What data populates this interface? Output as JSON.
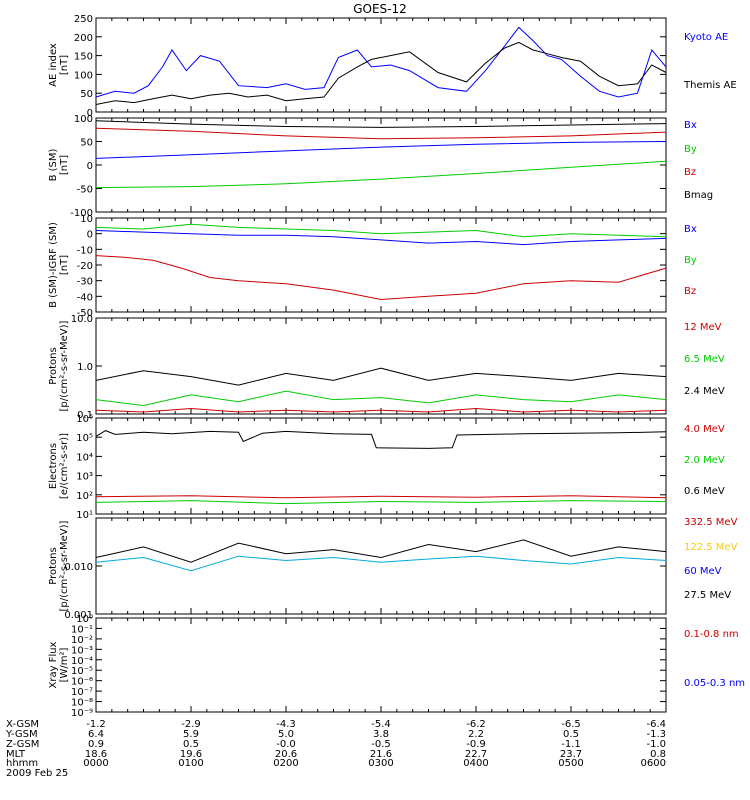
{
  "title": "GOES-12",
  "panels": [
    {
      "id": "ae",
      "ylabel_lines": [
        "AE index",
        "[nT]"
      ],
      "scale": "linear",
      "ylim": [
        0,
        250
      ],
      "ticks": [
        {
          "v": 0,
          "label": "0"
        },
        {
          "v": 50,
          "label": "50"
        },
        {
          "v": 100,
          "label": "100"
        },
        {
          "v": 150,
          "label": "150"
        },
        {
          "v": 200,
          "label": "200"
        },
        {
          "v": 250,
          "label": "250"
        }
      ],
      "legend": [
        {
          "text": "Kyoto AE",
          "color": "#0000ff"
        },
        {
          "text": "Themis AE",
          "color": "#000000"
        }
      ]
    },
    {
      "id": "b_sm",
      "ylabel_lines": [
        "B (SM)",
        "[nT]"
      ],
      "scale": "linear",
      "ylim": [
        -100,
        100
      ],
      "ticks": [
        {
          "v": -100,
          "label": "-100"
        },
        {
          "v": -50,
          "label": "-50"
        },
        {
          "v": 0,
          "label": "0"
        },
        {
          "v": 50,
          "label": "50"
        },
        {
          "v": 100,
          "label": "100"
        }
      ],
      "legend": [
        {
          "text": "Bx",
          "color": "#0000ff"
        },
        {
          "text": "By",
          "color": "#00cc00"
        },
        {
          "text": "Bz",
          "color": "#cc0000"
        },
        {
          "text": "Bmag",
          "color": "#000000"
        }
      ]
    },
    {
      "id": "b_diff",
      "ylabel_lines": [
        "B (SM)-IGRF (SM)",
        "[nT]"
      ],
      "scale": "linear",
      "ylim": [
        -50,
        10
      ],
      "ticks": [
        {
          "v": -50,
          "label": "-50"
        },
        {
          "v": -40,
          "label": "-40"
        },
        {
          "v": -30,
          "label": "-30"
        },
        {
          "v": -20,
          "label": "-20"
        },
        {
          "v": -10,
          "label": "-10"
        },
        {
          "v": 0,
          "label": "0"
        },
        {
          "v": 10,
          "label": "10"
        }
      ],
      "legend": [
        {
          "text": "Bx",
          "color": "#0000ff"
        },
        {
          "text": "By",
          "color": "#00cc00"
        },
        {
          "text": "Bz",
          "color": "#cc0000"
        }
      ]
    },
    {
      "id": "protons_mev",
      "ylabel_lines": [
        "Protons",
        "[p/(cm²-s-sr-MeV)]"
      ],
      "scale": "log",
      "ylim": [
        0.1,
        10
      ],
      "ticks": [
        {
          "v": 0.1,
          "label": "0.1"
        },
        {
          "v": 1,
          "label": "1.0"
        },
        {
          "v": 10,
          "label": "10.0"
        }
      ],
      "legend": [
        {
          "text": "12 MeV",
          "color": "#cc0000"
        },
        {
          "text": "6.5 MeV",
          "color": "#00cc00"
        },
        {
          "text": "2.4 MeV",
          "color": "#000000"
        }
      ]
    },
    {
      "id": "electrons",
      "ylabel_lines": [
        "Electrons",
        "[e/(cm²-s-sr)]"
      ],
      "scale": "log",
      "ylim": [
        10,
        1000000
      ],
      "ticks": [
        {
          "v": 10,
          "label": "10¹"
        },
        {
          "v": 100,
          "label": "10²"
        },
        {
          "v": 1000,
          "label": "10³"
        },
        {
          "v": 10000,
          "label": "10⁴"
        },
        {
          "v": 100000,
          "label": "10⁵"
        },
        {
          "v": 1000000,
          "label": "10⁶"
        }
      ],
      "legend": [
        {
          "text": "4.0 MeV",
          "color": "#cc0000"
        },
        {
          "text": "2.0 MeV",
          "color": "#00cc00"
        },
        {
          "text": "0.6 MeV",
          "color": "#000000"
        }
      ]
    },
    {
      "id": "protons_hi",
      "ylabel_lines": [
        "Protons",
        "[p/(cm²-s-sr-MeV)]"
      ],
      "scale": "log",
      "ylim": [
        0.001,
        0.1
      ],
      "ticks": [
        {
          "v": 0.001,
          "label": "0.001"
        },
        {
          "v": 0.01,
          "label": "0.010"
        },
        {
          "v": 0.1,
          "label": ""
        }
      ],
      "legend": [
        {
          "text": "332.5 MeV",
          "color": "#cc0000"
        },
        {
          "text": "122.5 MeV",
          "color": "#ffcc00"
        },
        {
          "text": "60 MeV",
          "color": "#0000ff"
        },
        {
          "text": "27.5 MeV",
          "color": "#000000"
        }
      ]
    },
    {
      "id": "xray",
      "ylabel_lines": [
        "Xray Flux",
        "[W/m²]"
      ],
      "scale": "log",
      "ylim": [
        1e-09,
        1
      ],
      "ticks": [
        {
          "v": 1e-09,
          "label": "10⁻⁹"
        },
        {
          "v": 1e-08,
          "label": "10⁻⁸"
        },
        {
          "v": 1e-07,
          "label": "10⁻⁷"
        },
        {
          "v": 1e-06,
          "label": "10⁻⁶"
        },
        {
          "v": 1e-05,
          "label": "10⁻⁵"
        },
        {
          "v": 0.0001,
          "label": "10⁻⁴"
        },
        {
          "v": 0.001,
          "label": "10⁻³"
        },
        {
          "v": 0.01,
          "label": "10⁻²"
        },
        {
          "v": 0.1,
          "label": "10⁻¹"
        },
        {
          "v": 1,
          "label": "10⁰"
        }
      ],
      "legend": [
        {
          "text": "0.1-0.8 nm",
          "color": "#cc0000"
        },
        {
          "text": "0.05-0.3 nm",
          "color": "#0000ff"
        }
      ]
    }
  ],
  "footer": {
    "row_labels": [
      "X-GSM",
      "Y-GSM",
      "Z-GSM",
      "MLT",
      "hhmm"
    ],
    "columns": [
      [
        "-1.2",
        "6.4",
        "0.9",
        "18.6",
        "0000"
      ],
      [
        "-2.9",
        "5.9",
        "0.5",
        "19.6",
        "0100"
      ],
      [
        "-4.3",
        "5.0",
        "-0.0",
        "20.6",
        "0200"
      ],
      [
        "-5.4",
        "3.8",
        "-0.5",
        "21.6",
        "0300"
      ],
      [
        "-6.2",
        "2.2",
        "-0.9",
        "22.7",
        "0400"
      ],
      [
        "-6.5",
        "0.5",
        "-1.1",
        "23.7",
        "0500"
      ],
      [
        "-6.4",
        "-1.3",
        "-1.0",
        "0.8",
        "0600"
      ]
    ],
    "date": "2009 Feb 25"
  },
  "chart_data": [
    {
      "type": "line",
      "panel": "ae",
      "x_unit": "hours UT",
      "xlim": [
        0,
        6
      ],
      "ylim": [
        0,
        250
      ],
      "series": [
        {
          "name": "Kyoto AE",
          "color": "#0000ff",
          "x": [
            0,
            0.2,
            0.4,
            0.55,
            0.7,
            0.8,
            0.95,
            1.1,
            1.3,
            1.5,
            1.8,
            2.0,
            2.2,
            2.4,
            2.55,
            2.75,
            2.9,
            3.1,
            3.3,
            3.6,
            3.9,
            4.1,
            4.3,
            4.45,
            4.6,
            4.75,
            4.9,
            5.1,
            5.3,
            5.5,
            5.7,
            5.85,
            6.0
          ],
          "values": [
            40,
            55,
            50,
            70,
            120,
            165,
            110,
            150,
            135,
            70,
            65,
            75,
            60,
            65,
            145,
            165,
            120,
            125,
            110,
            65,
            55,
            110,
            175,
            225,
            190,
            150,
            140,
            95,
            55,
            40,
            50,
            165,
            120
          ]
        },
        {
          "name": "Themis AE",
          "color": "#000000",
          "x": [
            0,
            0.2,
            0.4,
            0.6,
            0.8,
            1.0,
            1.2,
            1.4,
            1.6,
            1.8,
            2.0,
            2.2,
            2.4,
            2.55,
            2.75,
            2.9,
            3.1,
            3.3,
            3.6,
            3.9,
            4.1,
            4.3,
            4.45,
            4.6,
            4.75,
            4.9,
            5.1,
            5.3,
            5.5,
            5.7,
            5.85,
            6.0
          ],
          "values": [
            20,
            30,
            25,
            35,
            45,
            35,
            45,
            50,
            40,
            45,
            30,
            35,
            40,
            90,
            120,
            140,
            150,
            160,
            105,
            80,
            130,
            170,
            185,
            165,
            155,
            145,
            135,
            95,
            70,
            75,
            125,
            105
          ]
        }
      ]
    },
    {
      "type": "line",
      "panel": "b_sm",
      "x_unit": "hours UT",
      "xlim": [
        0,
        6
      ],
      "ylim": [
        -100,
        100
      ],
      "series": [
        {
          "name": "Bx",
          "color": "#0000ff",
          "x": [
            0,
            1,
            2,
            3,
            4,
            5,
            6
          ],
          "values": [
            14,
            22,
            30,
            38,
            44,
            48,
            50
          ]
        },
        {
          "name": "By",
          "color": "#00cc00",
          "x": [
            0,
            1,
            2,
            3,
            4,
            5,
            6
          ],
          "values": [
            -48,
            -46,
            -40,
            -30,
            -18,
            -5,
            8
          ]
        },
        {
          "name": "Bz",
          "color": "#cc0000",
          "x": [
            0,
            1,
            2,
            3,
            4,
            5,
            6
          ],
          "values": [
            78,
            72,
            62,
            56,
            58,
            62,
            70
          ]
        },
        {
          "name": "Bmag",
          "color": "#000000",
          "x": [
            0,
            1,
            2,
            3,
            4,
            5,
            6
          ],
          "values": [
            94,
            87,
            82,
            80,
            82,
            85,
            88
          ]
        }
      ]
    },
    {
      "type": "line",
      "panel": "b_diff",
      "x_unit": "hours UT",
      "xlim": [
        0,
        6
      ],
      "ylim": [
        -50,
        10
      ],
      "series": [
        {
          "name": "Bx",
          "color": "#0000ff",
          "x": [
            0,
            0.5,
            1.0,
            1.5,
            2.0,
            2.5,
            3.0,
            3.5,
            4.0,
            4.5,
            5.0,
            5.5,
            6.0
          ],
          "values": [
            2,
            1,
            0,
            -1,
            -1,
            -2,
            -4,
            -6,
            -5,
            -7,
            -5,
            -4,
            -3
          ]
        },
        {
          "name": "By",
          "color": "#00cc00",
          "x": [
            0,
            0.5,
            1.0,
            1.5,
            2.0,
            2.5,
            3.0,
            3.5,
            4.0,
            4.5,
            5.0,
            5.5,
            6.0
          ],
          "values": [
            4,
            3,
            6,
            4,
            3,
            2,
            0,
            1,
            2,
            -2,
            0,
            -1,
            -2
          ]
        },
        {
          "name": "Bz",
          "color": "#cc0000",
          "x": [
            0,
            0.3,
            0.6,
            0.9,
            1.2,
            1.5,
            2.0,
            2.5,
            3.0,
            3.5,
            4.0,
            4.5,
            5.0,
            5.5,
            6.0
          ],
          "values": [
            -14,
            -15,
            -17,
            -22,
            -28,
            -30,
            -32,
            -36,
            -42,
            -40,
            -38,
            -32,
            -30,
            -31,
            -22
          ]
        }
      ]
    },
    {
      "type": "line",
      "panel": "protons_mev",
      "x_unit": "hours UT",
      "xlim": [
        0,
        6
      ],
      "ylim": [
        0.1,
        10
      ],
      "yscale": "log",
      "series": [
        {
          "name": "2.4 MeV",
          "color": "#000000",
          "x": [
            0,
            0.5,
            1.0,
            1.5,
            2.0,
            2.5,
            3.0,
            3.5,
            4.0,
            4.5,
            5.0,
            5.5,
            6.0
          ],
          "values": [
            0.5,
            0.8,
            0.6,
            0.4,
            0.7,
            0.5,
            0.9,
            0.5,
            0.7,
            0.6,
            0.5,
            0.7,
            0.6
          ]
        },
        {
          "name": "6.5 MeV",
          "color": "#00cc00",
          "x": [
            0,
            0.5,
            1.0,
            1.5,
            2.0,
            2.5,
            3.0,
            3.5,
            4.0,
            4.5,
            5.0,
            5.5,
            6.0
          ],
          "values": [
            0.2,
            0.15,
            0.25,
            0.18,
            0.3,
            0.2,
            0.22,
            0.17,
            0.25,
            0.2,
            0.18,
            0.25,
            0.2
          ]
        },
        {
          "name": "12 MeV",
          "color": "#cc0000",
          "x": [
            0,
            0.5,
            1.0,
            1.5,
            2.0,
            2.5,
            3.0,
            3.5,
            4.0,
            4.5,
            5.0,
            5.5,
            6.0
          ],
          "values": [
            0.12,
            0.11,
            0.13,
            0.11,
            0.12,
            0.11,
            0.12,
            0.11,
            0.13,
            0.11,
            0.12,
            0.11,
            0.12
          ]
        }
      ]
    },
    {
      "type": "line",
      "panel": "electrons",
      "x_unit": "hours UT",
      "xlim": [
        0,
        6
      ],
      "ylim": [
        10,
        1000000
      ],
      "yscale": "log",
      "series": [
        {
          "name": "0.6 MeV",
          "color": "#000000",
          "x": [
            0,
            0.1,
            0.2,
            0.5,
            0.8,
            1.2,
            1.5,
            1.55,
            1.75,
            2.0,
            2.5,
            2.9,
            2.95,
            3.5,
            3.75,
            3.8,
            4.5,
            5.0,
            5.5,
            6.0
          ],
          "values": [
            110000,
            220000,
            140000,
            180000,
            150000,
            200000,
            180000,
            60000,
            160000,
            200000,
            150000,
            140000,
            28000,
            26000,
            28000,
            130000,
            150000,
            160000,
            170000,
            190000
          ]
        },
        {
          "name": "4.0 MeV",
          "color": "#cc0000",
          "x": [
            0,
            1,
            2,
            3,
            4,
            5,
            6
          ],
          "values": [
            80,
            90,
            70,
            85,
            75,
            90,
            70
          ]
        },
        {
          "name": "2.0 MeV",
          "color": "#00cc00",
          "x": [
            0,
            1,
            2,
            3,
            4,
            5,
            6
          ],
          "values": [
            40,
            50,
            35,
            45,
            40,
            50,
            45
          ]
        }
      ]
    },
    {
      "type": "line",
      "panel": "protons_hi",
      "x_unit": "hours UT",
      "xlim": [
        0,
        6
      ],
      "ylim": [
        0.001,
        0.1
      ],
      "yscale": "log",
      "series": [
        {
          "name": "27.5 MeV",
          "color": "#000000",
          "x": [
            0,
            0.5,
            1.0,
            1.5,
            2.0,
            2.5,
            3.0,
            3.5,
            4.0,
            4.5,
            5.0,
            5.5,
            6.0
          ],
          "values": [
            0.015,
            0.025,
            0.012,
            0.03,
            0.018,
            0.022,
            0.015,
            0.028,
            0.02,
            0.035,
            0.016,
            0.025,
            0.02
          ]
        },
        {
          "name": "60 MeV",
          "color": "#00aadd",
          "x": [
            0,
            0.5,
            1.0,
            1.5,
            2.0,
            2.5,
            3.0,
            3.5,
            4.0,
            4.5,
            5.0,
            5.5,
            6.0
          ],
          "values": [
            0.012,
            0.015,
            0.008,
            0.016,
            0.013,
            0.015,
            0.012,
            0.014,
            0.016,
            0.013,
            0.011,
            0.015,
            0.013
          ]
        }
      ]
    },
    {
      "type": "line",
      "panel": "xray",
      "x_unit": "hours UT",
      "xlim": [
        0,
        6
      ],
      "ylim": [
        1e-09,
        1
      ],
      "yscale": "log",
      "series": []
    }
  ]
}
